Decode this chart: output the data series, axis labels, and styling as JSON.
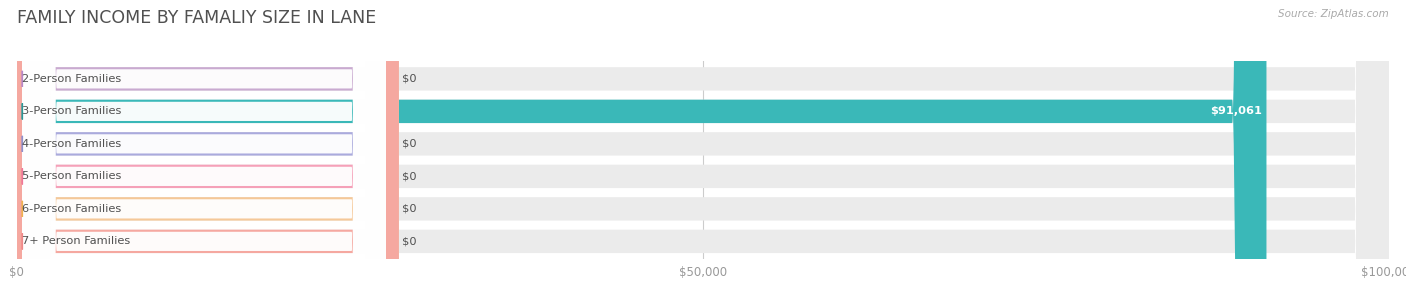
{
  "title": "FAMILY INCOME BY FAMALIY SIZE IN LANE",
  "source": "Source: ZipAtlas.com",
  "categories": [
    "2-Person Families",
    "3-Person Families",
    "4-Person Families",
    "5-Person Families",
    "6-Person Families",
    "7+ Person Families"
  ],
  "values": [
    0,
    91061,
    0,
    0,
    0,
    0
  ],
  "bar_colors": [
    "#c9aad0",
    "#3ab8b8",
    "#aaaadd",
    "#f5a0b8",
    "#f5c898",
    "#f5a8a0"
  ],
  "icon_colors": [
    "#b888c8",
    "#2a9898",
    "#9090cc",
    "#f07898",
    "#f0b050",
    "#f08888"
  ],
  "xlim": [
    0,
    100000
  ],
  "xticks": [
    0,
    50000,
    100000
  ],
  "xtick_labels": [
    "$0",
    "$50,000",
    "$100,000"
  ],
  "value_labels": [
    "$0",
    "$91,061",
    "$0",
    "$0",
    "$0",
    "$0"
  ],
  "background_color": "#ffffff",
  "title_color": "#505050",
  "label_color": "#505050",
  "source_color": "#aaaaaa",
  "bar_bg_color": "#ebebeb",
  "label_box_color": "#ffffff"
}
